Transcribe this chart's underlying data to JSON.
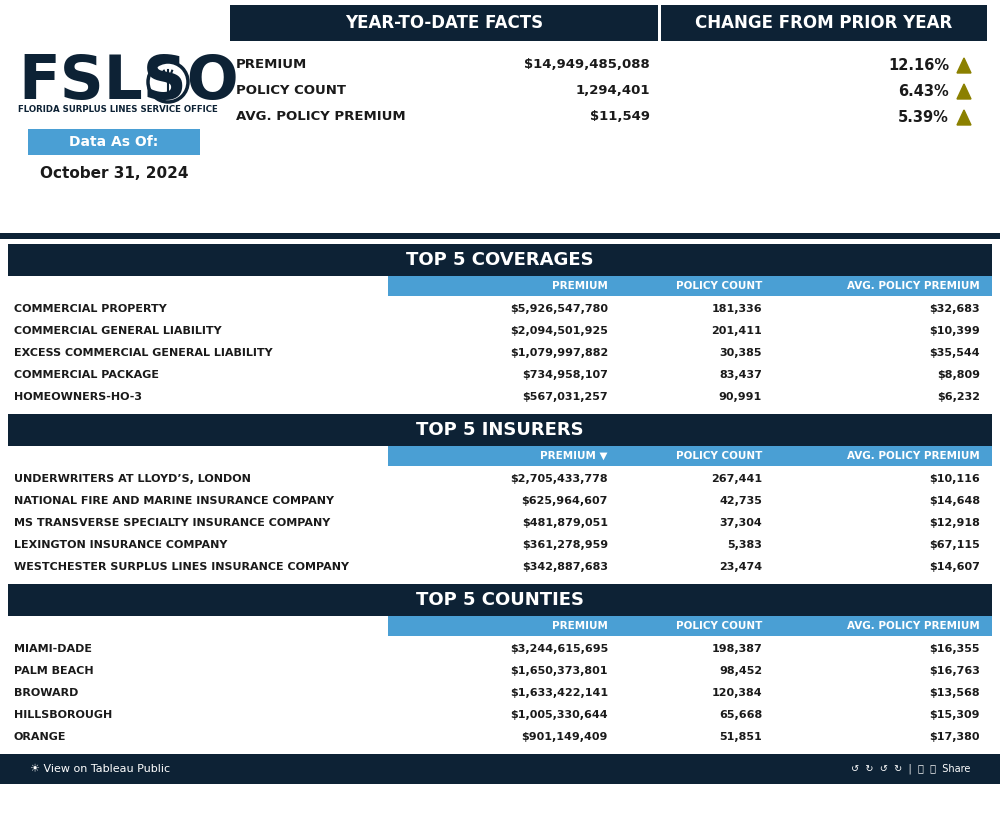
{
  "bg_color": "#ffffff",
  "dark_navy": "#0d2235",
  "light_blue_header": "#4a9fd4",
  "arrow_color": "#8b8000",
  "data_as_of_bg": "#4a9fd4",
  "ytd_header": "YEAR-TO-DATE FACTS",
  "yoy_header": "CHANGE FROM PRIOR YEAR",
  "ytd_rows": [
    {
      "label": "PREMIUM",
      "value": "$14,949,485,088"
    },
    {
      "label": "POLICY COUNT",
      "value": "1,294,401"
    },
    {
      "label": "AVG. POLICY PREMIUM",
      "value": "$11,549"
    }
  ],
  "yoy_changes": [
    "12.16%",
    "6.43%",
    "5.39%"
  ],
  "coverages_title": "TOP 5 COVERAGES",
  "coverages_col_headers": [
    "PREMIUM",
    "POLICY COUNT",
    "AVG. POLICY PREMIUM"
  ],
  "coverages_rows": [
    [
      "COMMERCIAL PROPERTY",
      "$5,926,547,780",
      "181,336",
      "$32,683"
    ],
    [
      "COMMERCIAL GENERAL LIABILITY",
      "$2,094,501,925",
      "201,411",
      "$10,399"
    ],
    [
      "EXCESS COMMERCIAL GENERAL LIABILITY",
      "$1,079,997,882",
      "30,385",
      "$35,544"
    ],
    [
      "COMMERCIAL PACKAGE",
      "$734,958,107",
      "83,437",
      "$8,809"
    ],
    [
      "HOMEOWNERS-HO-3",
      "$567,031,257",
      "90,991",
      "$6,232"
    ]
  ],
  "insurers_title": "TOP 5 INSURERS",
  "insurers_col_headers": [
    "PREMIUM ▼",
    "POLICY COUNT",
    "AVG. POLICY PREMIUM"
  ],
  "insurers_rows": [
    [
      "UNDERWRITERS AT LLOYD’S, LONDON",
      "$2,705,433,778",
      "267,441",
      "$10,116"
    ],
    [
      "NATIONAL FIRE AND MARINE INSURANCE COMPANY",
      "$625,964,607",
      "42,735",
      "$14,648"
    ],
    [
      "MS TRANSVERSE SPECIALTY INSURANCE COMPANY",
      "$481,879,051",
      "37,304",
      "$12,918"
    ],
    [
      "LEXINGTON INSURANCE COMPANY",
      "$361,278,959",
      "5,383",
      "$67,115"
    ],
    [
      "WESTCHESTER SURPLUS LINES INSURANCE COMPANY",
      "$342,887,683",
      "23,474",
      "$14,607"
    ]
  ],
  "counties_title": "TOP 5 COUNTIES",
  "counties_col_headers": [
    "PREMIUM",
    "POLICY COUNT",
    "AVG. POLICY PREMIUM"
  ],
  "counties_rows": [
    [
      "MIAMI-DADE",
      "$3,244,615,695",
      "198,387",
      "$16,355"
    ],
    [
      "PALM BEACH",
      "$1,650,373,801",
      "98,452",
      "$16,763"
    ],
    [
      "BROWARD",
      "$1,633,422,141",
      "120,384",
      "$13,568"
    ],
    [
      "HILLSBOROUGH",
      "$1,005,330,644",
      "65,668",
      "$15,309"
    ],
    [
      "ORANGE",
      "$901,149,409",
      "51,851",
      "$17,380"
    ]
  ],
  "date_label": "Data As Of:",
  "date_value": "October 31, 2024",
  "footer": "☀ View on Tableau Public",
  "fslso_text": "FSLSO",
  "fslso_sub": "FLORIDA SURPLUS LINES SERVICE OFFICE"
}
